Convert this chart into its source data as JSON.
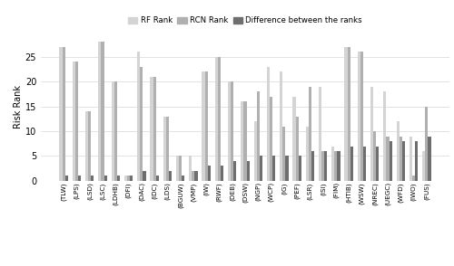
{
  "categories": [
    "(TLW)",
    "(LPS)",
    "(LSD)",
    "(LSC)",
    "(LDHB)",
    "(DFI)",
    "(DAC)",
    "(IDC)",
    "(LDS)",
    "(BGUW)",
    "(VMP)",
    "(IW)",
    "(RWF)",
    "(DEB)",
    "(DSW)",
    "(NGP)",
    "(WCP)",
    "(IG)",
    "(PEF)",
    "(LSR)",
    "(ISI)",
    "(FIM)",
    "(HTIB)",
    "(WSW)",
    "(NREC)",
    "(UEGC)",
    "(WFD)",
    "(IWO)",
    "(FUS)"
  ],
  "rf_values": [
    27,
    24,
    14,
    28,
    20,
    1,
    26,
    21,
    13,
    5,
    5,
    22,
    25,
    20,
    16,
    12,
    23,
    22,
    17,
    11,
    19,
    7,
    27,
    26,
    19,
    18,
    12,
    9,
    6
  ],
  "rcn_values": [
    27,
    24,
    14,
    28,
    20,
    1,
    23,
    21,
    13,
    5,
    2,
    22,
    25,
    20,
    16,
    18,
    17,
    11,
    13,
    19,
    6,
    6,
    27,
    26,
    10,
    9,
    9,
    1,
    15
  ],
  "diff_values": [
    1,
    1,
    1,
    1,
    1,
    1,
    2,
    1,
    2,
    1,
    2,
    3,
    3,
    4,
    4,
    5,
    5,
    5,
    5,
    6,
    6,
    6,
    7,
    7,
    7,
    8,
    8,
    8,
    9
  ],
  "color_rf": "#d4d4d4",
  "color_rcn": "#b0b0b0",
  "color_diff": "#6e6e6e",
  "ylabel": "Risk Rank",
  "ylim": [
    0,
    30
  ],
  "yticks": [
    0,
    5,
    10,
    15,
    20,
    25
  ],
  "background_color": "#ffffff",
  "legend_labels": [
    "RF Rank",
    "RCN Rank",
    "Difference between the ranks"
  ]
}
